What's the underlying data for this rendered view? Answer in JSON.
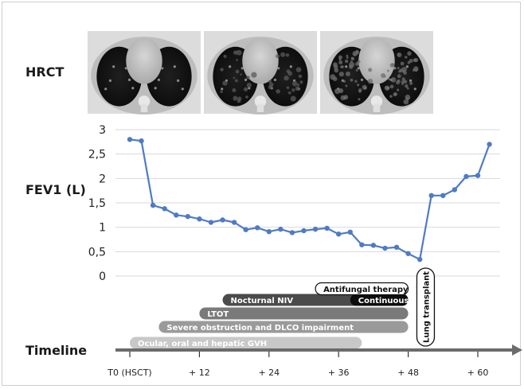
{
  "labels": {
    "hrct": "HRCT",
    "fev1": "FEV1 (L)",
    "timeline": "Timeline"
  },
  "chart_data": {
    "type": "line",
    "title": "",
    "xlabel": "",
    "ylabel": "FEV1 (L)",
    "ylim": [
      0,
      3
    ],
    "y_ticks": [
      "0",
      "0,5",
      "1",
      "1,5",
      "2",
      "2,5",
      "3"
    ],
    "x_ticks": [
      {
        "value": 0,
        "label": "T0 (HSCT)"
      },
      {
        "value": 12,
        "label": "+ 12"
      },
      {
        "value": 24,
        "label": "+ 24"
      },
      {
        "value": 36,
        "label": "+ 36"
      },
      {
        "value": 48,
        "label": "+ 48"
      },
      {
        "value": 60,
        "label": "+ 60"
      }
    ],
    "grid": true,
    "series": [
      {
        "color": "#4f7bc4",
        "x": [
          0,
          2,
          4,
          6,
          8,
          10,
          12,
          14,
          16,
          18,
          20,
          22,
          24,
          26,
          28,
          30,
          32,
          34,
          36,
          38,
          40,
          42,
          44,
          46,
          48,
          50,
          52,
          54,
          56,
          58,
          60,
          62
        ],
        "y": [
          2.8,
          2.77,
          1.45,
          1.38,
          1.25,
          1.22,
          1.17,
          1.1,
          1.15,
          1.1,
          0.95,
          0.99,
          0.91,
          0.96,
          0.89,
          0.93,
          0.96,
          0.98,
          0.86,
          0.9,
          0.64,
          0.63,
          0.57,
          0.59,
          0.46,
          0.34,
          1.65,
          1.65,
          1.77,
          2.04,
          2.06,
          2.7
        ]
      }
    ]
  },
  "timeline": {
    "bars": [
      {
        "label": "Ocular, oral and hepatic GVH",
        "start": 0,
        "end": 40,
        "color": "#c8c8c8",
        "text_color": "#ffffff"
      },
      {
        "label": "Severe obstruction and DLCO impairment",
        "start": 5,
        "end": 48,
        "color": "#9a9a9a",
        "text_color": "#ffffff"
      },
      {
        "label": "LTOT",
        "start": 12,
        "end": 48,
        "color": "#7a7a7a",
        "text_color": "#ffffff"
      },
      {
        "label": "Nocturnal NIV",
        "start": 16,
        "end": 48,
        "color": "#4b4b4b",
        "text_color": "#ffffff"
      },
      {
        "label": "Continuous NIV",
        "start": 38,
        "end": 48,
        "color": "#0d0d0d",
        "text_color": "#ffffff"
      },
      {
        "label": "Antifungal therapy",
        "start": 32,
        "end": 48,
        "color": "#ffffff",
        "text_color": "#111111"
      }
    ],
    "event_label": "Lung transplant",
    "event_at": 51
  },
  "ct_panels": [
    {
      "name": "ct-scan-1",
      "style": "normal"
    },
    {
      "name": "ct-scan-2",
      "style": "moderate"
    },
    {
      "name": "ct-scan-3",
      "style": "severe"
    }
  ]
}
